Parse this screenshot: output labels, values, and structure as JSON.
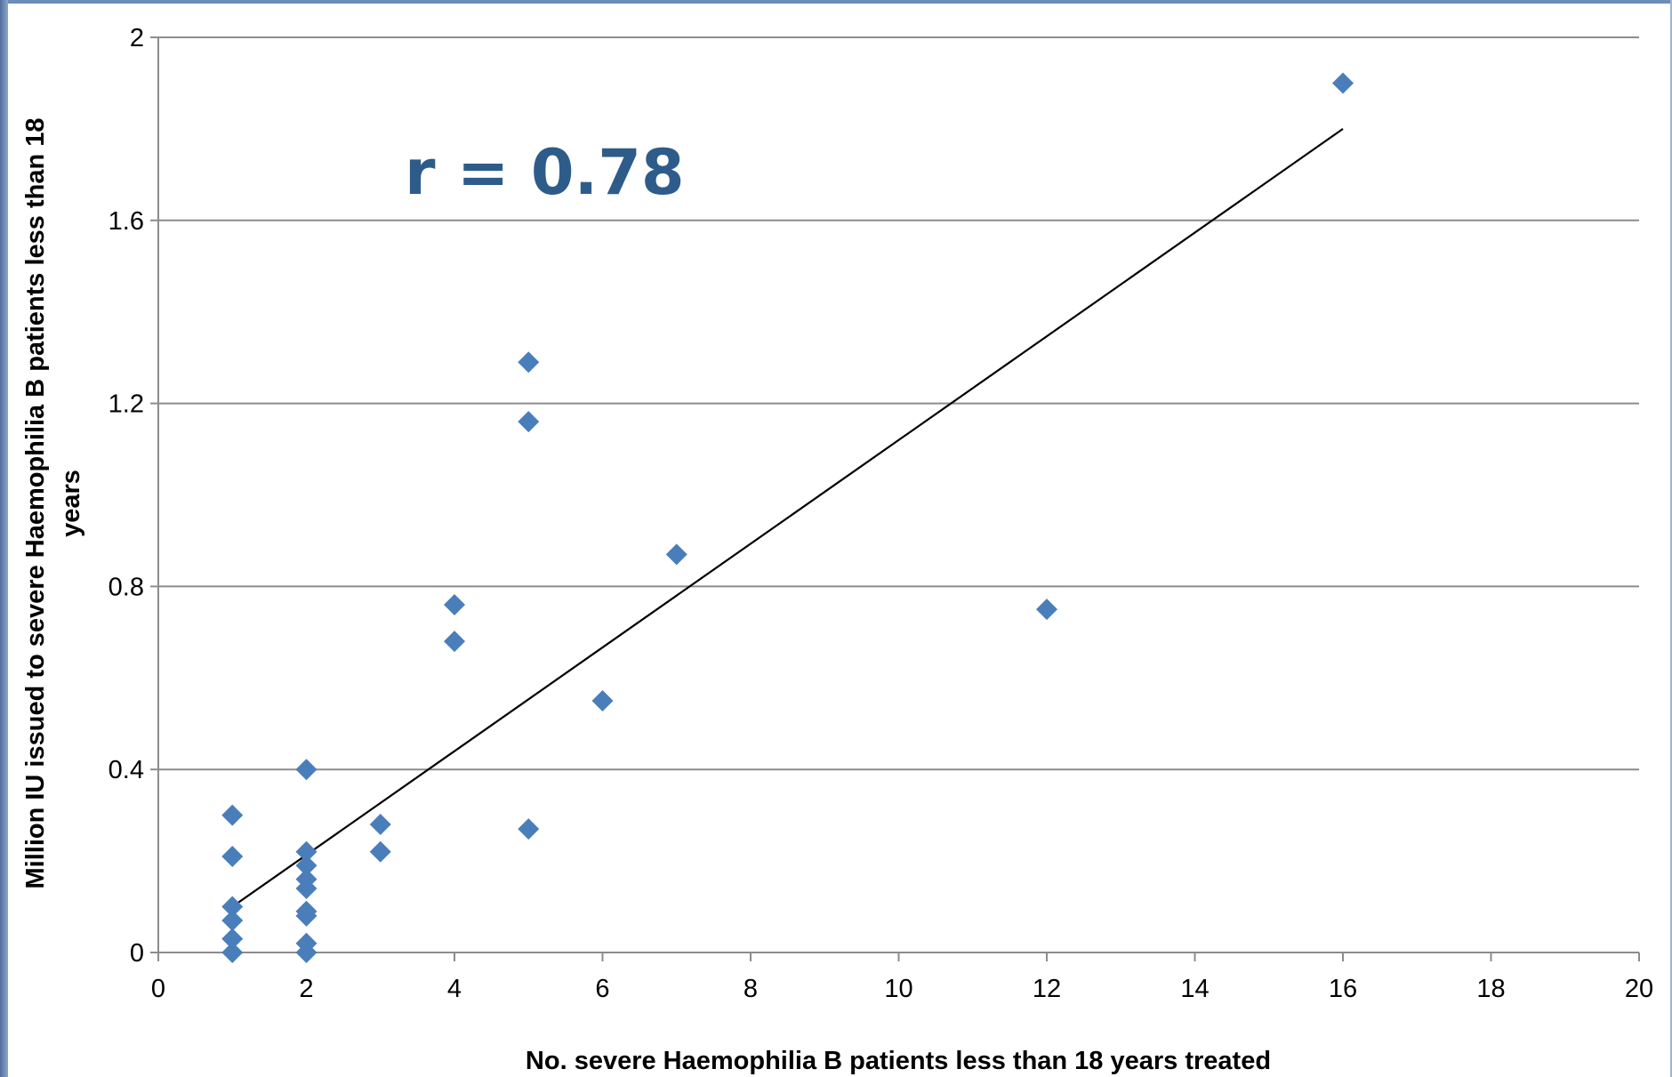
{
  "chart_data": {
    "type": "scatter",
    "title": "",
    "xlabel": "No. severe Haemophilia  B patients less than 18 years treated",
    "ylabel_line1": "Million IU issued to severe Haemophilia  B patients less than 18",
    "ylabel_line2": "years",
    "annotation": "r = 0.78",
    "xlim": [
      0,
      20
    ],
    "ylim": [
      0,
      2
    ],
    "x_ticks": [
      0,
      2,
      4,
      6,
      8,
      10,
      12,
      14,
      16,
      18,
      20
    ],
    "y_ticks": [
      0,
      0.4,
      0.8,
      1.2,
      1.6,
      2
    ],
    "y_tick_labels": [
      "0",
      "0.4",
      "0.8",
      "1.2",
      "1.6",
      "2"
    ],
    "grid": "horizontal",
    "legend": "none",
    "marker": "diamond",
    "marker_color": "#4a7ebb",
    "trendline_color": "#000000",
    "points": [
      {
        "x": 1,
        "y": 0.3
      },
      {
        "x": 1,
        "y": 0.21
      },
      {
        "x": 1,
        "y": 0.1
      },
      {
        "x": 1,
        "y": 0.07
      },
      {
        "x": 1,
        "y": 0.03
      },
      {
        "x": 1,
        "y": 0.0
      },
      {
        "x": 2,
        "y": 0.4
      },
      {
        "x": 2,
        "y": 0.22
      },
      {
        "x": 2,
        "y": 0.19
      },
      {
        "x": 2,
        "y": 0.16
      },
      {
        "x": 2,
        "y": 0.14
      },
      {
        "x": 2,
        "y": 0.09
      },
      {
        "x": 2,
        "y": 0.08
      },
      {
        "x": 2,
        "y": 0.02
      },
      {
        "x": 2,
        "y": 0.0
      },
      {
        "x": 3,
        "y": 0.28
      },
      {
        "x": 3,
        "y": 0.22
      },
      {
        "x": 4,
        "y": 0.76
      },
      {
        "x": 4,
        "y": 0.68
      },
      {
        "x": 5,
        "y": 1.29
      },
      {
        "x": 5,
        "y": 1.16
      },
      {
        "x": 5,
        "y": 0.27
      },
      {
        "x": 6,
        "y": 0.55
      },
      {
        "x": 7,
        "y": 0.87
      },
      {
        "x": 12,
        "y": 0.75
      },
      {
        "x": 16,
        "y": 1.9
      }
    ],
    "trendline": {
      "x": [
        1,
        16
      ],
      "y": [
        0.1,
        1.8
      ]
    }
  }
}
